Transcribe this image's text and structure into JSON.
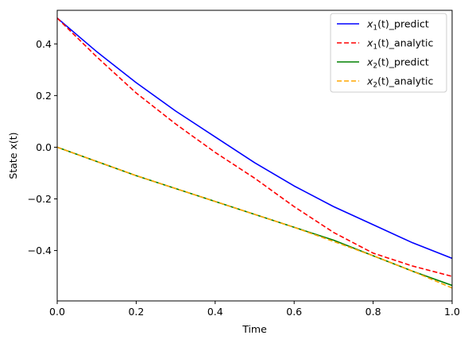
{
  "chart_data": {
    "type": "line",
    "xlabel": "Time",
    "ylabel": "State x(t)",
    "xlim": [
      0,
      1.0
    ],
    "ylim": [
      -0.595,
      0.53
    ],
    "xticks": [
      0.0,
      0.2,
      0.4,
      0.6,
      0.8,
      1.0
    ],
    "xtick_labels": [
      "0.0",
      "0.2",
      "0.4",
      "0.6",
      "0.8",
      "1.0"
    ],
    "yticks": [
      0.4,
      0.2,
      0.0,
      -0.2,
      -0.4
    ],
    "ytick_labels": [
      "0.4",
      "0.2",
      "0.0",
      "−0.2",
      "−0.4"
    ],
    "grid": false,
    "legend_position": "top-right",
    "series": [
      {
        "name": "x1(t)_predict",
        "legend_var": "x",
        "legend_sub": "1",
        "legend_suffix": "(t)_predict",
        "color": "#0000ff",
        "dash": "solid",
        "x": [
          0,
          0.1,
          0.2,
          0.3,
          0.4,
          0.5,
          0.6,
          0.7,
          0.8,
          0.9,
          1.0
        ],
        "y": [
          0.5,
          0.37,
          0.25,
          0.14,
          0.04,
          -0.06,
          -0.15,
          -0.23,
          -0.3,
          -0.37,
          -0.43
        ]
      },
      {
        "name": "x1(t)_analytic",
        "legend_var": "x",
        "legend_sub": "1",
        "legend_suffix": "(t)_analytic",
        "color": "#ff0000",
        "dash": "dashed",
        "x": [
          0,
          0.1,
          0.2,
          0.3,
          0.4,
          0.5,
          0.6,
          0.7,
          0.8,
          0.9,
          1.0
        ],
        "y": [
          0.5,
          0.35,
          0.21,
          0.09,
          -0.02,
          -0.12,
          -0.23,
          -0.33,
          -0.41,
          -0.46,
          -0.5
        ]
      },
      {
        "name": "x2(t)_predict",
        "legend_var": "x",
        "legend_sub": "2",
        "legend_suffix": "(t)_predict",
        "color": "#008000",
        "dash": "solid",
        "x": [
          0,
          0.1,
          0.2,
          0.3,
          0.4,
          0.5,
          0.6,
          0.7,
          0.8,
          0.9,
          1.0
        ],
        "y": [
          0.0,
          -0.055,
          -0.11,
          -0.16,
          -0.21,
          -0.26,
          -0.31,
          -0.36,
          -0.42,
          -0.48,
          -0.535
        ]
      },
      {
        "name": "x2(t)_analytic",
        "legend_var": "x",
        "legend_sub": "2",
        "legend_suffix": "(t)_analytic",
        "color": "#ffa500",
        "dash": "dashed",
        "x": [
          0,
          0.1,
          0.2,
          0.3,
          0.4,
          0.5,
          0.6,
          0.7,
          0.8,
          0.9,
          1.0
        ],
        "y": [
          0.0,
          -0.055,
          -0.11,
          -0.16,
          -0.21,
          -0.26,
          -0.31,
          -0.365,
          -0.42,
          -0.48,
          -0.545
        ]
      }
    ]
  }
}
